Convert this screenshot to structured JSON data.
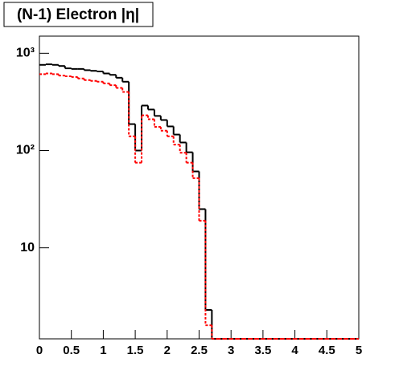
{
  "chart_data": {
    "type": "histogram",
    "title": "(N-1) Electron |η|",
    "bins": [
      0,
      0.1,
      0.2,
      0.3,
      0.4,
      0.5,
      0.6,
      0.7,
      0.8,
      0.9,
      1,
      1.1,
      1.2,
      1.3,
      1.4,
      1.5,
      1.6,
      1.7,
      1.8,
      1.9,
      2,
      2.1,
      2.2,
      2.3,
      2.4,
      2.5,
      2.6,
      2.7,
      2.8,
      2.9,
      3,
      3.1,
      3.2,
      3.3,
      3.4,
      3.5,
      3.6,
      3.7,
      3.8,
      3.9,
      4,
      4.1,
      4.2,
      4.3,
      4.4,
      4.5,
      4.6,
      4.7,
      4.8,
      4.9,
      5
    ],
    "series": [
      {
        "color": "#000000",
        "values": [
          760,
          770,
          760,
          740,
          700,
          690,
          690,
          670,
          660,
          650,
          620,
          600,
          560,
          510,
          187,
          100,
          290,
          264,
          227,
          206,
          177,
          146,
          121,
          96,
          61,
          25,
          2.3,
          0,
          0,
          0,
          0,
          0,
          0,
          0,
          0,
          0,
          0,
          0,
          0,
          0,
          0,
          0,
          0,
          0,
          0,
          0,
          0,
          0,
          0,
          0
        ]
      },
      {
        "color": "#ff0000",
        "values": [
          610,
          620,
          610,
          590,
          580,
          570,
          550,
          530,
          520,
          510,
          490,
          470,
          440,
          400,
          140,
          75,
          230,
          210,
          175,
          160,
          140,
          115,
          95,
          75,
          52,
          19,
          1.6,
          0,
          0,
          0,
          0,
          0,
          0,
          0,
          0,
          0,
          0,
          0,
          0,
          0,
          0,
          0,
          0,
          0,
          0,
          0,
          0,
          0,
          0,
          0
        ]
      }
    ],
    "xlim": [
      0,
      5
    ],
    "xticks": [
      0,
      0.5,
      1,
      1.5,
      2,
      2.5,
      3,
      3.5,
      4,
      4.5,
      5
    ],
    "ylim": [
      1.16,
      1500
    ],
    "log_y": true,
    "yticks": [
      10,
      {
        "value": 100,
        "label": "10²"
      },
      {
        "value": 1000,
        "label": "10³"
      }
    ]
  }
}
